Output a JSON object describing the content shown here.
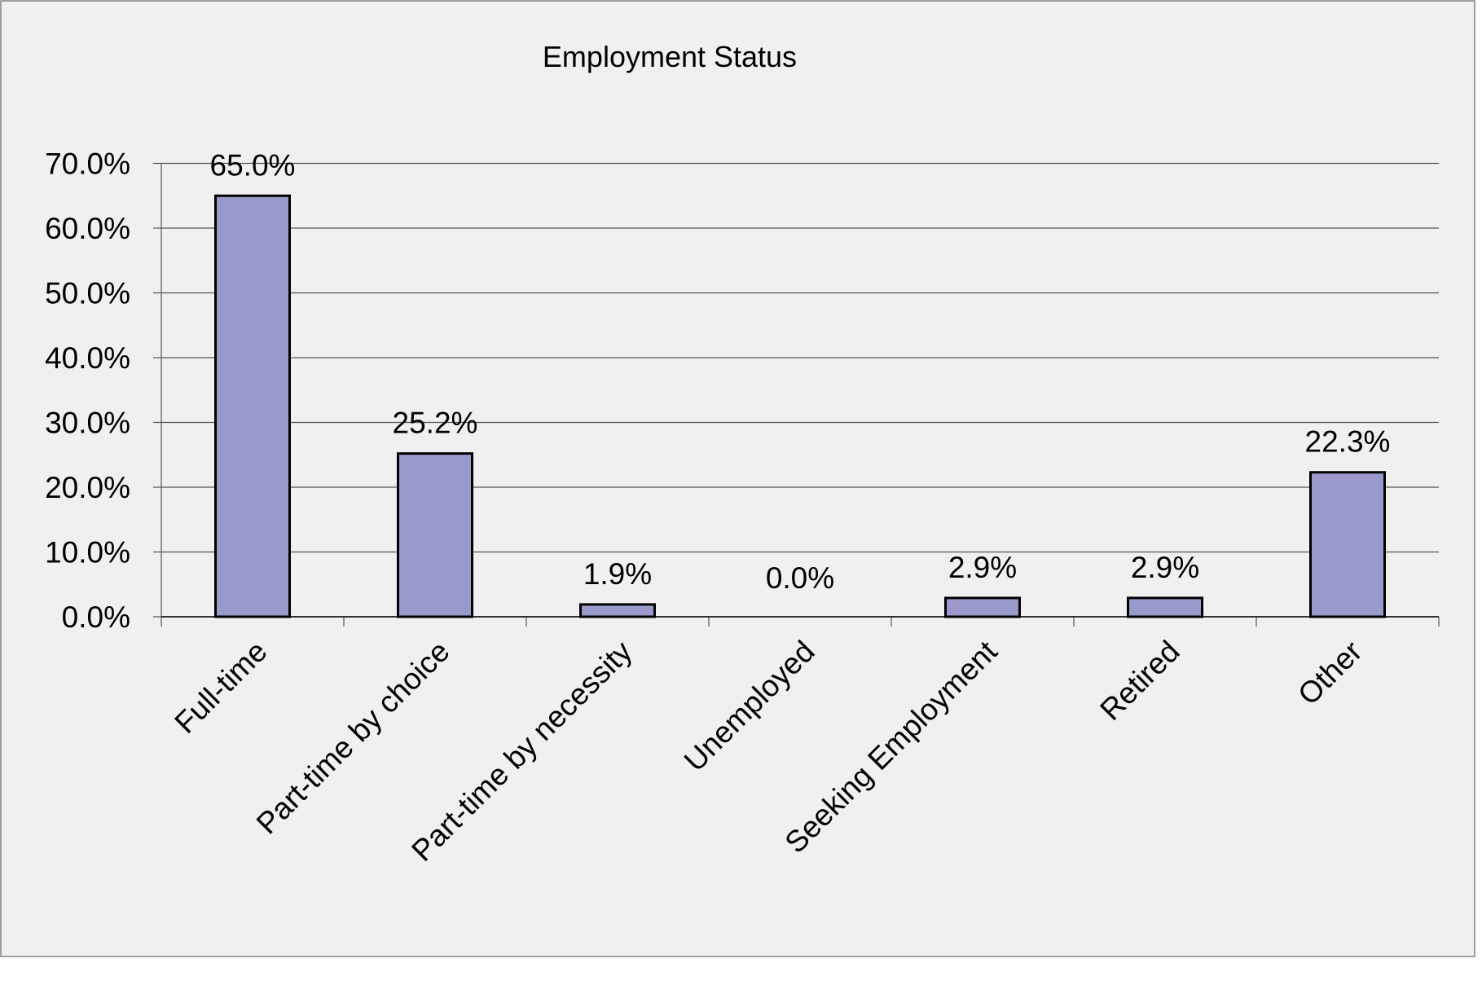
{
  "chart_data": {
    "type": "bar",
    "title": "Employment Status",
    "categories": [
      "Full-time",
      "Part-time by choice",
      "Part-time by necessity",
      "Unemployed",
      "Seeking Employment",
      "Retired",
      "Other"
    ],
    "values": [
      65.0,
      25.2,
      1.9,
      0.0,
      2.9,
      2.9,
      22.3
    ],
    "data_labels": [
      "65.0%",
      "25.2%",
      "1.9%",
      "0.0%",
      "2.9%",
      "2.9%",
      "22.3%"
    ],
    "yticks": [
      "0.0%",
      "10.0%",
      "20.0%",
      "30.0%",
      "40.0%",
      "50.0%",
      "60.0%",
      "70.0%"
    ],
    "ylim": [
      0,
      70
    ],
    "xlabel": "",
    "ylabel": "",
    "grid": true,
    "legend": "none",
    "colors": {
      "bar": "#9999cc",
      "background": "#f0f0f0"
    }
  }
}
